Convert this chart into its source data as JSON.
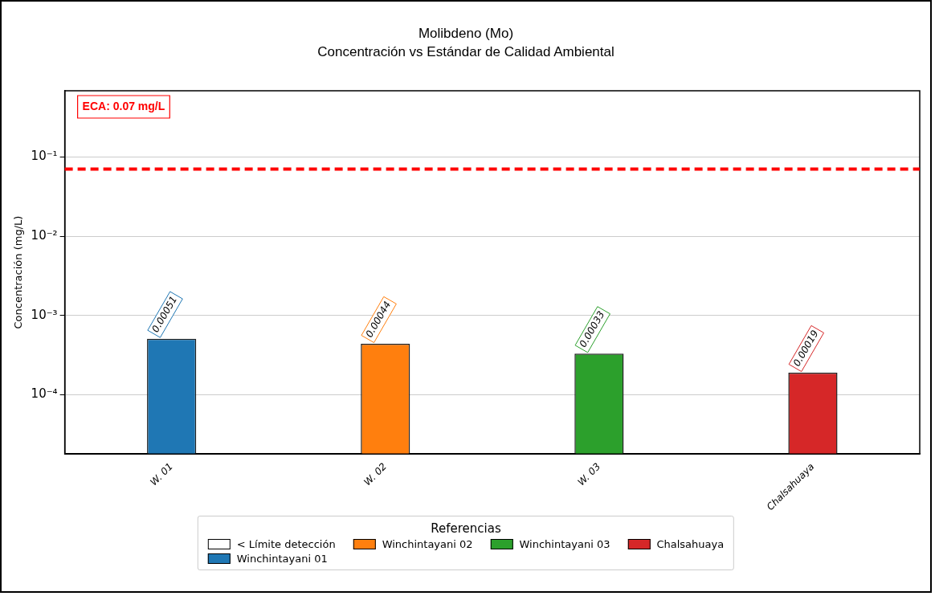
{
  "chart_data": {
    "type": "bar",
    "title": "Molibdeno (Mo)\nConcentración vs Estándar de Calidad Ambiental",
    "ylabel": "Concentración (mg/L)",
    "legend_title": "Referencias",
    "categories": [
      "W. 01",
      "W. 02",
      "W. 03",
      "Chalsahuaya"
    ],
    "series": [
      {
        "name": "< Límite detección",
        "color": "#ffffff",
        "values": [
          null,
          null,
          null,
          null
        ]
      },
      {
        "name": "Winchintayani 01",
        "color": "#1f77b4",
        "values": [
          0.00051,
          null,
          null,
          null
        ],
        "value_labels": [
          "0.00051",
          null,
          null,
          null
        ]
      },
      {
        "name": "Winchintayani 02",
        "color": "#ff7f0e",
        "values": [
          null,
          0.00044,
          null,
          null
        ],
        "value_labels": [
          null,
          "0.00044",
          null,
          null
        ]
      },
      {
        "name": "Winchintayani 03",
        "color": "#2ca02c",
        "values": [
          null,
          null,
          0.00033,
          null
        ],
        "value_labels": [
          null,
          null,
          "0.00033",
          null
        ]
      },
      {
        "name": "Chalsahuaya",
        "color": "#d62728",
        "values": [
          null,
          null,
          null,
          0.00019
        ],
        "value_labels": [
          null,
          null,
          null,
          "0.00019"
        ]
      }
    ],
    "log": true,
    "ylim": [
      1.8e-05,
      0.68
    ],
    "yticks": [
      {
        "value": 0.0001,
        "label": "10⁻⁴"
      },
      {
        "value": 0.001,
        "label": "10⁻³"
      },
      {
        "value": 0.01,
        "label": "10⁻²"
      },
      {
        "value": 0.1,
        "label": "10⁻¹"
      }
    ],
    "ref_lines": [
      {
        "axis": "y",
        "value": 0.07,
        "label": "ECA: 0.07 mg/L",
        "color": "#ff0000",
        "line_style": "dashed"
      }
    ],
    "grid": "y",
    "legend": "bottom"
  }
}
